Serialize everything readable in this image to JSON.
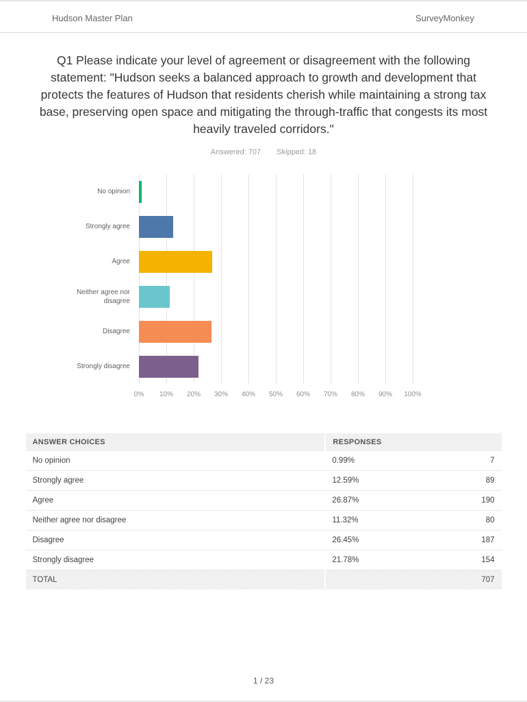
{
  "header": {
    "left": "Hudson Master Plan",
    "right": "SurveyMonkey"
  },
  "question": {
    "title": "Q1 Please indicate your level of agreement or disagreement with the following statement: \"Hudson seeks a balanced approach to growth and development that protects the features of Hudson that residents cherish while maintaining a strong tax base, preserving open space and mitigating the through-traffic that congests its most heavily traveled corridors.\""
  },
  "stats": {
    "answered_label": "Answered:",
    "answered_value": "707",
    "skipped_label": "Skipped:",
    "skipped_value": "18"
  },
  "chart_data": {
    "type": "bar",
    "orientation": "horizontal",
    "title": "",
    "xlabel": "",
    "ylabel": "",
    "grid": true,
    "legend": false,
    "xlim": [
      0,
      100
    ],
    "categories": [
      "No opinion",
      "Strongly agree",
      "Agree",
      "Neither agree nor disagree",
      "Disagree",
      "Strongly disagree"
    ],
    "values": [
      0.99,
      12.59,
      26.87,
      11.32,
      26.45,
      21.78
    ],
    "colors": [
      "#10b768",
      "#4f78aa",
      "#f5b201",
      "#6ac6cd",
      "#f58c54",
      "#7d5f8d"
    ],
    "x_ticks": [
      "0%",
      "10%",
      "20%",
      "30%",
      "40%",
      "50%",
      "60%",
      "70%",
      "80%",
      "90%",
      "100%"
    ]
  },
  "table": {
    "headers": [
      "ANSWER CHOICES",
      "RESPONSES"
    ],
    "rows": [
      {
        "choice": "No opinion",
        "percent": "0.99%",
        "count": "7"
      },
      {
        "choice": "Strongly agree",
        "percent": "12.59%",
        "count": "89"
      },
      {
        "choice": "Agree",
        "percent": "26.87%",
        "count": "190"
      },
      {
        "choice": "Neither agree nor disagree",
        "percent": "11.32%",
        "count": "80"
      },
      {
        "choice": "Disagree",
        "percent": "26.45%",
        "count": "187"
      },
      {
        "choice": "Strongly disagree",
        "percent": "21.78%",
        "count": "154"
      }
    ],
    "total_label": "TOTAL",
    "total_value": "707"
  },
  "footer": {
    "page_indicator": "1 / 23"
  }
}
